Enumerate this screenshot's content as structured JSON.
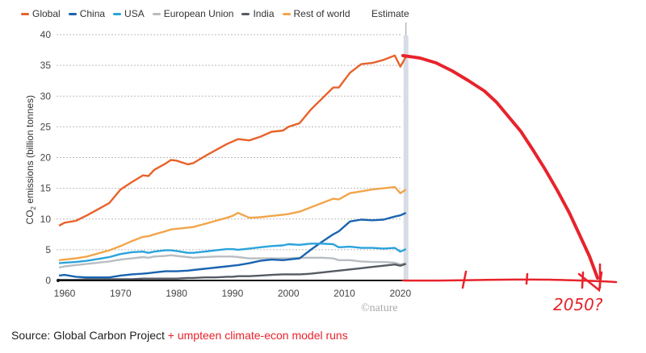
{
  "chart_data": {
    "type": "line",
    "title": "",
    "xlabel": "",
    "ylabel": "CO2 emissions (billion tonnes)",
    "xlim": [
      1959,
      2021
    ],
    "ylim": [
      0,
      40
    ],
    "x_ticks": [
      "1960",
      "1970",
      "1980",
      "1990",
      "2000",
      "2010",
      "2020"
    ],
    "y_ticks": [
      "0",
      "5",
      "10",
      "15",
      "20",
      "25",
      "30",
      "35",
      "40"
    ],
    "grid": true,
    "legend_position": "top",
    "estimate_label": "Estimate",
    "estimate_year": 2021,
    "x": [
      1959,
      1960,
      1962,
      1964,
      1966,
      1968,
      1970,
      1972,
      1974,
      1975,
      1976,
      1978,
      1979,
      1980,
      1982,
      1983,
      1985,
      1987,
      1989,
      1990,
      1991,
      1993,
      1995,
      1997,
      1999,
      2000,
      2002,
      2004,
      2006,
      2008,
      2009,
      2011,
      2013,
      2015,
      2017,
      2019,
      2020,
      2021
    ],
    "series": [
      {
        "name": "Global",
        "color": "#e8622a",
        "values": [
          8.9,
          9.4,
          9.7,
          10.6,
          11.6,
          12.6,
          14.8,
          16.0,
          17.1,
          17.0,
          18.0,
          19.0,
          19.6,
          19.5,
          18.9,
          19.1,
          20.2,
          21.2,
          22.2,
          22.6,
          23.0,
          22.8,
          23.4,
          24.2,
          24.4,
          25.0,
          25.6,
          27.8,
          29.6,
          31.4,
          31.4,
          33.8,
          35.2,
          35.4,
          35.9,
          36.6,
          34.8,
          36.4
        ]
      },
      {
        "name": "China",
        "color": "#1a64b0",
        "values": [
          0.8,
          0.9,
          0.6,
          0.5,
          0.5,
          0.5,
          0.8,
          1.0,
          1.1,
          1.2,
          1.3,
          1.5,
          1.5,
          1.5,
          1.6,
          1.7,
          1.9,
          2.1,
          2.3,
          2.4,
          2.5,
          2.8,
          3.2,
          3.4,
          3.3,
          3.4,
          3.6,
          5.0,
          6.3,
          7.5,
          8.0,
          9.6,
          9.9,
          9.8,
          9.9,
          10.4,
          10.6,
          11.0
        ]
      },
      {
        "name": "USA",
        "color": "#2aa3dc",
        "values": [
          2.8,
          2.9,
          3.0,
          3.2,
          3.5,
          3.8,
          4.3,
          4.6,
          4.7,
          4.5,
          4.7,
          4.9,
          4.9,
          4.8,
          4.5,
          4.5,
          4.7,
          4.9,
          5.1,
          5.1,
          5.0,
          5.2,
          5.4,
          5.6,
          5.7,
          5.9,
          5.8,
          6.0,
          6.0,
          5.9,
          5.4,
          5.5,
          5.3,
          5.3,
          5.2,
          5.3,
          4.7,
          5.1
        ]
      },
      {
        "name": "European Union",
        "color": "#b9bdc2",
        "values": [
          2.1,
          2.3,
          2.5,
          2.7,
          2.9,
          3.1,
          3.4,
          3.6,
          3.8,
          3.7,
          3.9,
          4.0,
          4.1,
          4.0,
          3.8,
          3.7,
          3.8,
          3.9,
          3.9,
          3.9,
          3.8,
          3.6,
          3.6,
          3.6,
          3.6,
          3.6,
          3.7,
          3.7,
          3.7,
          3.6,
          3.3,
          3.3,
          3.1,
          3.0,
          3.0,
          2.9,
          2.6,
          2.8
        ]
      },
      {
        "name": "India",
        "color": "#555a63",
        "values": [
          0.1,
          0.1,
          0.1,
          0.2,
          0.2,
          0.2,
          0.2,
          0.2,
          0.3,
          0.3,
          0.3,
          0.3,
          0.3,
          0.3,
          0.4,
          0.4,
          0.5,
          0.5,
          0.6,
          0.6,
          0.7,
          0.7,
          0.8,
          0.9,
          1.0,
          1.0,
          1.0,
          1.1,
          1.3,
          1.5,
          1.6,
          1.8,
          2.0,
          2.2,
          2.4,
          2.6,
          2.4,
          2.7
        ]
      },
      {
        "name": "Rest of world",
        "color": "#f2a54a",
        "values": [
          3.3,
          3.4,
          3.6,
          3.9,
          4.4,
          4.9,
          5.6,
          6.4,
          7.1,
          7.2,
          7.5,
          8.0,
          8.3,
          8.4,
          8.6,
          8.7,
          9.2,
          9.7,
          10.2,
          10.5,
          11.0,
          10.2,
          10.3,
          10.5,
          10.7,
          10.8,
          11.2,
          11.9,
          12.6,
          13.3,
          13.2,
          14.2,
          14.5,
          14.8,
          15.0,
          15.2,
          14.2,
          14.8
        ]
      }
    ],
    "annotation": {
      "text": "2050?",
      "color": "#e8232c",
      "description": "hand-drawn red projection curve falling from ~36.5 in 2021 to 0 in 2050, with extended x-axis ticks",
      "projection_x": [
        2021,
        2025,
        2030,
        2035,
        2040,
        2045,
        2050
      ],
      "projection_y": [
        36.5,
        35.5,
        32.5,
        27.5,
        20.5,
        11.5,
        0
      ]
    }
  },
  "legend": [
    {
      "label": "Global",
      "color": "#e8622a"
    },
    {
      "label": "China",
      "color": "#1a64b0"
    },
    {
      "label": "USA",
      "color": "#2aa3dc"
    },
    {
      "label": "European Union",
      "color": "#b9bdc2"
    },
    {
      "label": "India",
      "color": "#555a63"
    },
    {
      "label": "Rest of world",
      "color": "#f2a54a"
    }
  ],
  "ylabel_main": "CO",
  "ylabel_sub": "2",
  "ylabel_rest": " emissions (billion tonnes)",
  "credit": "©nature",
  "source_prefix": "Source: Global Carbon Project ",
  "source_suffix": "+ umpteen climate-econ model runs"
}
